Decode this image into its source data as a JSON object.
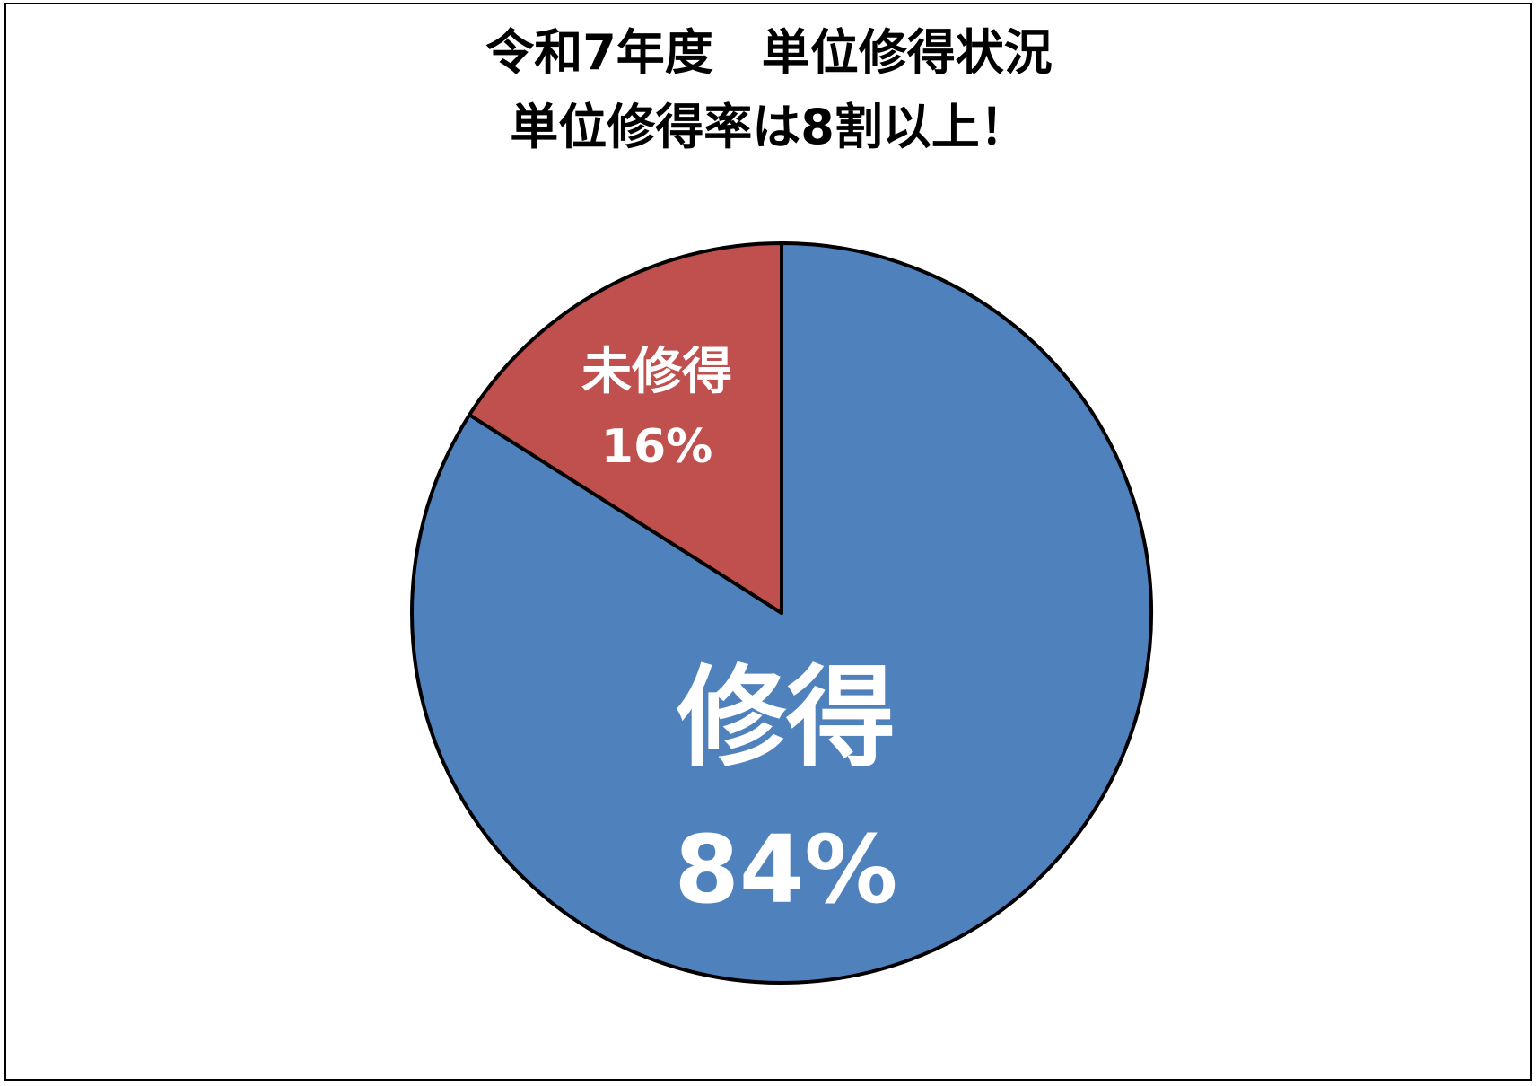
{
  "chart_data": {
    "type": "pie",
    "title": "令和7年度　単位修得状況",
    "subtitle": "単位修得率は8割以上！",
    "slices": [
      {
        "label": "修得",
        "value": 84,
        "value_label": "84%",
        "color": "#4F81BD"
      },
      {
        "label": "未修得",
        "value": 16,
        "value_label": "16%",
        "color": "#C0504D"
      }
    ],
    "start_angle": "12 o'clock",
    "direction": "clockwise",
    "legend": "none"
  }
}
